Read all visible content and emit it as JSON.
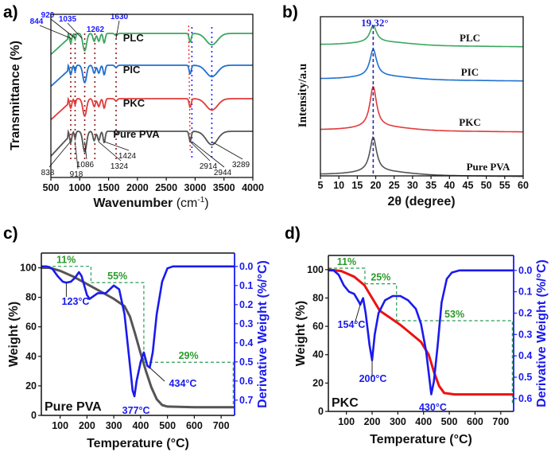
{
  "panels": {
    "a": "a)",
    "b": "b)",
    "c": "c)",
    "d": "d)"
  },
  "chart_data": [
    {
      "id": "a",
      "type": "line",
      "title": "",
      "xlabel": "Wavenumber (cm⁻¹)",
      "xlabel_main": "Wavenumber ",
      "xlabel_unit": "(cm",
      "xlabel_sup": "-1",
      "xlabel_close": ")",
      "ylabel": "Transmittance (%)",
      "xlim": [
        500,
        4000
      ],
      "xticks": [
        500,
        1000,
        1500,
        2000,
        2500,
        3000,
        3500,
        4000
      ],
      "series": [
        {
          "name": "PLC",
          "color": "#3aa860",
          "offset": 3
        },
        {
          "name": "PIC",
          "color": "#2070d0",
          "offset": 2
        },
        {
          "name": "PKC",
          "color": "#e23a3a",
          "offset": 1
        },
        {
          "name": "Pure PVA",
          "color": "#555555",
          "offset": 0
        }
      ],
      "vlines_brown": [
        844,
        920,
        1086,
        1262,
        1630
      ],
      "vline_red": 2914,
      "vlines_blue": [
        2944,
        3289
      ],
      "top_annotations": [
        "844",
        "920",
        "1035",
        "1262",
        "1630"
      ],
      "top_annotation_x": [
        844,
        920,
        1035,
        1262,
        1630
      ],
      "bottom_annotations": [
        "838",
        "918",
        "1086",
        "1324",
        "1424",
        "2914",
        "2944",
        "3289"
      ],
      "bottom_annotation_x": [
        838,
        918,
        1086,
        1324,
        1424,
        2914,
        2944,
        3289
      ]
    },
    {
      "id": "b",
      "type": "line",
      "title": "",
      "xlabel": "2θ (degree)",
      "ylabel": "Intensity/a.u",
      "xlim": [
        5,
        60
      ],
      "xticks": [
        5,
        10,
        15,
        20,
        25,
        30,
        35,
        40,
        45,
        50,
        55,
        60
      ],
      "peak_position": 19.32,
      "peak_label": "19.32°",
      "series": [
        {
          "name": "PLC",
          "color": "#3aa860",
          "peak_height": 0.55
        },
        {
          "name": "PIC",
          "color": "#2070d0",
          "peak_height": 0.9
        },
        {
          "name": "PKC",
          "color": "#e23a3a",
          "peak_height": 1.35
        },
        {
          "name": "Pure PVA",
          "color": "#555555",
          "peak_height": 1.15
        }
      ]
    },
    {
      "id": "c",
      "type": "line",
      "title": "",
      "sample": "Pure PVA",
      "xlabel": "Temperature (°C)",
      "ylabel": "Weight (%)",
      "y2label": "Derivative Weight (%/°C)",
      "xlim": [
        30,
        750
      ],
      "ylim": [
        0,
        110
      ],
      "y2lim": [
        -0.07,
        0.78
      ],
      "xticks": [
        100,
        200,
        300,
        400,
        500,
        600,
        700
      ],
      "yticks": [
        0,
        20,
        40,
        60,
        80,
        100
      ],
      "y2ticks": [
        "0.0",
        "0.1",
        "0.2",
        "0.3",
        "0.4",
        "0.5",
        "0.6",
        "0.7"
      ],
      "weight_series": {
        "name": "Weight",
        "color": "#555555",
        "points": [
          [
            30,
            100
          ],
          [
            60,
            100
          ],
          [
            100,
            98
          ],
          [
            150,
            94
          ],
          [
            200,
            89
          ],
          [
            250,
            84
          ],
          [
            300,
            79
          ],
          [
            340,
            74
          ],
          [
            360,
            67
          ],
          [
            380,
            55
          ],
          [
            400,
            42
          ],
          [
            420,
            30
          ],
          [
            440,
            19
          ],
          [
            460,
            11
          ],
          [
            480,
            7
          ],
          [
            500,
            6
          ],
          [
            600,
            5.5
          ],
          [
            750,
            5.5
          ]
        ]
      },
      "derivative_series": {
        "name": "Derivative Weight",
        "color": "#1a1aee",
        "points": [
          [
            30,
            0
          ],
          [
            50,
            0
          ],
          [
            70,
            0.01
          ],
          [
            90,
            0.05
          ],
          [
            110,
            0.08
          ],
          [
            123,
            0.085
          ],
          [
            140,
            0.08
          ],
          [
            155,
            0.06
          ],
          [
            170,
            0.03
          ],
          [
            180,
            0.05
          ],
          [
            190,
            0.1
          ],
          [
            200,
            0.15
          ],
          [
            210,
            0.17
          ],
          [
            240,
            0.14
          ],
          [
            270,
            0.14
          ],
          [
            300,
            0.1
          ],
          [
            320,
            0.12
          ],
          [
            340,
            0.25
          ],
          [
            355,
            0.45
          ],
          [
            370,
            0.65
          ],
          [
            377,
            0.68
          ],
          [
            385,
            0.6
          ],
          [
            400,
            0.5
          ],
          [
            412,
            0.45
          ],
          [
            425,
            0.52
          ],
          [
            434,
            0.53
          ],
          [
            445,
            0.45
          ],
          [
            460,
            0.25
          ],
          [
            480,
            0.08
          ],
          [
            500,
            0.01
          ],
          [
            520,
            0
          ],
          [
            750,
            0
          ]
        ]
      },
      "steps": [
        {
          "label": "11%",
          "x_from": 30,
          "x_to": 215,
          "y": 101
        },
        {
          "label": "55%",
          "x_from": 215,
          "x_to": 412,
          "y": 90
        },
        {
          "label": "29%",
          "x_from": 412,
          "x_to": 745,
          "y": 36
        }
      ],
      "peak_labels": [
        "123°C",
        "377°C",
        "434°C"
      ]
    },
    {
      "id": "d",
      "type": "line",
      "title": "",
      "sample": "PKC",
      "xlabel": "Temperature (°C)",
      "ylabel": "Weight (%)",
      "y2label": "Derivative Weight (%/°C)",
      "xlim": [
        30,
        750
      ],
      "ylim": [
        0,
        110
      ],
      "y2lim": [
        -0.07,
        0.66
      ],
      "xticks": [
        100,
        200,
        300,
        400,
        500,
        600,
        700
      ],
      "yticks": [
        0,
        20,
        40,
        60,
        80,
        100
      ],
      "y2ticks": [
        "0.0",
        "0.1",
        "0.2",
        "0.3",
        "0.4",
        "0.5",
        "0.6"
      ],
      "weight_series": {
        "name": "Weight",
        "color": "#ee1111",
        "points": [
          [
            30,
            100
          ],
          [
            80,
            99
          ],
          [
            130,
            95
          ],
          [
            170,
            89
          ],
          [
            200,
            80
          ],
          [
            230,
            71
          ],
          [
            270,
            66
          ],
          [
            310,
            61
          ],
          [
            350,
            55
          ],
          [
            390,
            49
          ],
          [
            420,
            40
          ],
          [
            440,
            28
          ],
          [
            460,
            18
          ],
          [
            480,
            13
          ],
          [
            520,
            12
          ],
          [
            750,
            12
          ]
        ]
      },
      "derivative_series": {
        "name": "Derivative Weight",
        "color": "#1a1aee",
        "points": [
          [
            30,
            0
          ],
          [
            50,
            0
          ],
          [
            70,
            0.02
          ],
          [
            90,
            0.07
          ],
          [
            110,
            0.1
          ],
          [
            130,
            0.11
          ],
          [
            150,
            0.15
          ],
          [
            154,
            0.16
          ],
          [
            165,
            0.13
          ],
          [
            175,
            0.2
          ],
          [
            190,
            0.35
          ],
          [
            200,
            0.42
          ],
          [
            210,
            0.3
          ],
          [
            225,
            0.2
          ],
          [
            250,
            0.14
          ],
          [
            280,
            0.12
          ],
          [
            310,
            0.12
          ],
          [
            340,
            0.14
          ],
          [
            370,
            0.18
          ],
          [
            390,
            0.25
          ],
          [
            410,
            0.38
          ],
          [
            430,
            0.58
          ],
          [
            440,
            0.52
          ],
          [
            455,
            0.35
          ],
          [
            470,
            0.15
          ],
          [
            490,
            0.04
          ],
          [
            510,
            0.01
          ],
          [
            540,
            0
          ],
          [
            750,
            0
          ]
        ]
      },
      "steps": [
        {
          "label": "11%",
          "x_from": 30,
          "x_to": 172,
          "y": 101
        },
        {
          "label": "25%",
          "x_from": 172,
          "x_to": 295,
          "y": 90
        },
        {
          "label": "53%",
          "x_from": 295,
          "x_to": 745,
          "y": 64
        }
      ],
      "peak_labels": [
        "154°C",
        "200°C",
        "430°C"
      ]
    }
  ]
}
